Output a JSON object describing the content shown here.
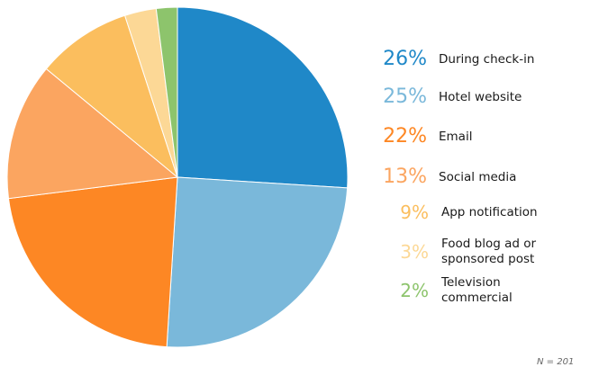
{
  "chart_data": {
    "type": "pie",
    "title": "",
    "categories": [
      "During check-in",
      "Hotel website",
      "Email",
      "Social media",
      "App notification",
      "Food blog ad or sponsored post",
      "Television commercial"
    ],
    "values": [
      26,
      25,
      22,
      13,
      9,
      3,
      2
    ],
    "value_labels": [
      "26%",
      "25%",
      "22%",
      "13%",
      "9%",
      "3%",
      "2%"
    ],
    "colors": [
      "#1f88c8",
      "#7ab8da",
      "#fd8724",
      "#fba560",
      "#fbbe5e",
      "#fcd896",
      "#8dc46c"
    ],
    "start": "top",
    "direction": "clockwise",
    "legend_placement": "right",
    "note": "N = 201"
  }
}
